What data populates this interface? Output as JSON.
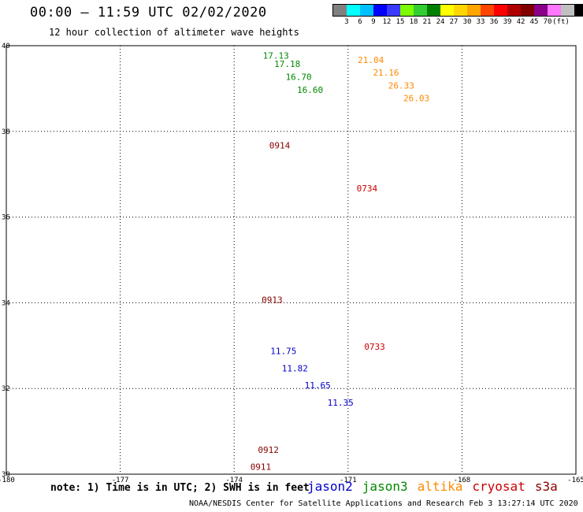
{
  "header": {
    "title": "00:00 – 11:59 UTC 02/02/2020",
    "subtitle": "12 hour collection of altimeter wave heights"
  },
  "color_legend": {
    "colors": [
      "#808080",
      "#00ffff",
      "#00bfff",
      "#0000ff",
      "#3a3aff",
      "#7cfc00",
      "#32cd32",
      "#008000",
      "#ffff00",
      "#ffd700",
      "#ffa500",
      "#ff4500",
      "#ff0000",
      "#b00000",
      "#800000",
      "#8b008b",
      "#ff77ff",
      "#c0c0c0",
      "#000000"
    ],
    "labels": [
      "3",
      "6",
      "9",
      "12",
      "15",
      "18",
      "21",
      "24",
      "27",
      "30",
      "33",
      "36",
      "39",
      "42",
      "45",
      "70",
      "(ft)"
    ]
  },
  "axes": {
    "lon_ticks": [
      "-180",
      "-177",
      "-174",
      "-171",
      "-168",
      "-165"
    ],
    "lat_ticks": [
      "40",
      "38",
      "36",
      "34",
      "32",
      "30"
    ]
  },
  "chart_data": {
    "type": "scatter",
    "xlim": [
      -180,
      -165
    ],
    "ylim": [
      30,
      40
    ],
    "grid": true,
    "series": [
      {
        "name": "jason2",
        "color": "#0000cc",
        "x": [
          -172.7,
          -172.4,
          -171.8,
          -171.2
        ],
        "y": [
          32.8,
          32.4,
          32.0,
          31.6
        ],
        "labels": [
          "11.75",
          "11.82",
          "11.65",
          "11.35"
        ]
      },
      {
        "name": "jason3",
        "color": "#008800",
        "x": [
          -172.9,
          -172.6,
          -172.3,
          -172.0
        ],
        "y": [
          39.7,
          39.5,
          39.2,
          38.9
        ],
        "labels": [
          "17.13",
          "17.18",
          "16.70",
          "16.60"
        ]
      },
      {
        "name": "altika",
        "color": "#ff8800",
        "x": [
          -170.4,
          -170.0,
          -169.6,
          -169.2
        ],
        "y": [
          39.6,
          39.3,
          39.0,
          38.7
        ],
        "labels": [
          "21.04",
          "21.16",
          "26.33",
          "26.03"
        ]
      },
      {
        "name": "cryosat",
        "color": "#cc0000",
        "x": [
          -170.5,
          -170.3
        ],
        "y": [
          36.6,
          32.9
        ],
        "labels": [
          "0734",
          "0733"
        ]
      },
      {
        "name": "s3a",
        "color": "#880000",
        "x": [
          -172.8,
          -173.0,
          -173.1,
          -173.3
        ],
        "y": [
          37.6,
          34.0,
          30.5,
          30.1
        ],
        "labels": [
          "0914",
          "0913",
          "0912",
          "0911"
        ]
      }
    ]
  },
  "footer": {
    "note": "note: 1) Time is in UTC; 2) SWH is in feet",
    "satellites": [
      {
        "label": "jason2",
        "color": "#0000cc"
      },
      {
        "label": "jason3",
        "color": "#008800"
      },
      {
        "label": "altika",
        "color": "#ff8800"
      },
      {
        "label": "cryosat",
        "color": "#cc0000"
      },
      {
        "label": "s3a",
        "color": "#880000"
      }
    ],
    "credit": "NOAA/NESDIS Center for Satellite Applications and Research   Feb  3 13:27:14 UTC 2020"
  }
}
